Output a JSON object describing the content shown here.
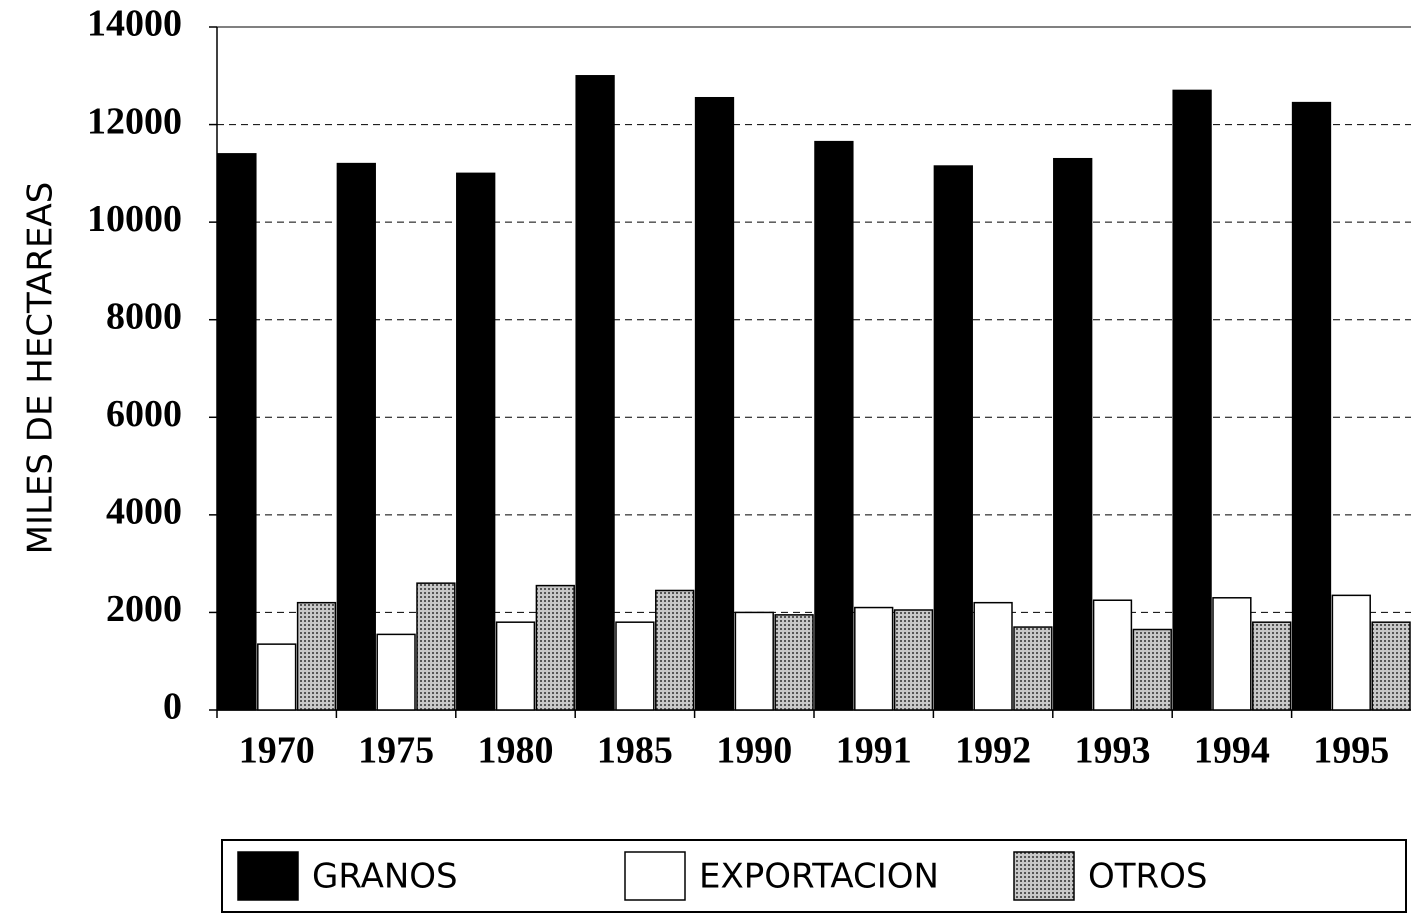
{
  "chart_data": {
    "type": "bar",
    "y_label": "MILES DE HECTAREAS",
    "categories": [
      "1970",
      "1975",
      "1980",
      "1985",
      "1990",
      "1991",
      "1992",
      "1993",
      "1994",
      "1995"
    ],
    "series": [
      {
        "name": "GRANOS",
        "color": "#000000",
        "values": [
          11400,
          11200,
          11000,
          13000,
          12550,
          11650,
          11150,
          11300,
          12700,
          12450
        ]
      },
      {
        "name": "EXPORTACION",
        "color": "#ffffff",
        "values": [
          1350,
          1550,
          1800,
          1800,
          2000,
          2100,
          2200,
          2250,
          2300,
          2350
        ]
      },
      {
        "name": "OTROS",
        "color": "#a6a6a6",
        "values": [
          2200,
          2600,
          2550,
          2450,
          1950,
          2050,
          1700,
          1650,
          1800,
          1800
        ]
      }
    ],
    "ylim": [
      0,
      14000
    ],
    "yticks": [
      0,
      2000,
      4000,
      6000,
      8000,
      10000,
      12000,
      14000
    ],
    "grid": true,
    "legend": "bottom"
  }
}
